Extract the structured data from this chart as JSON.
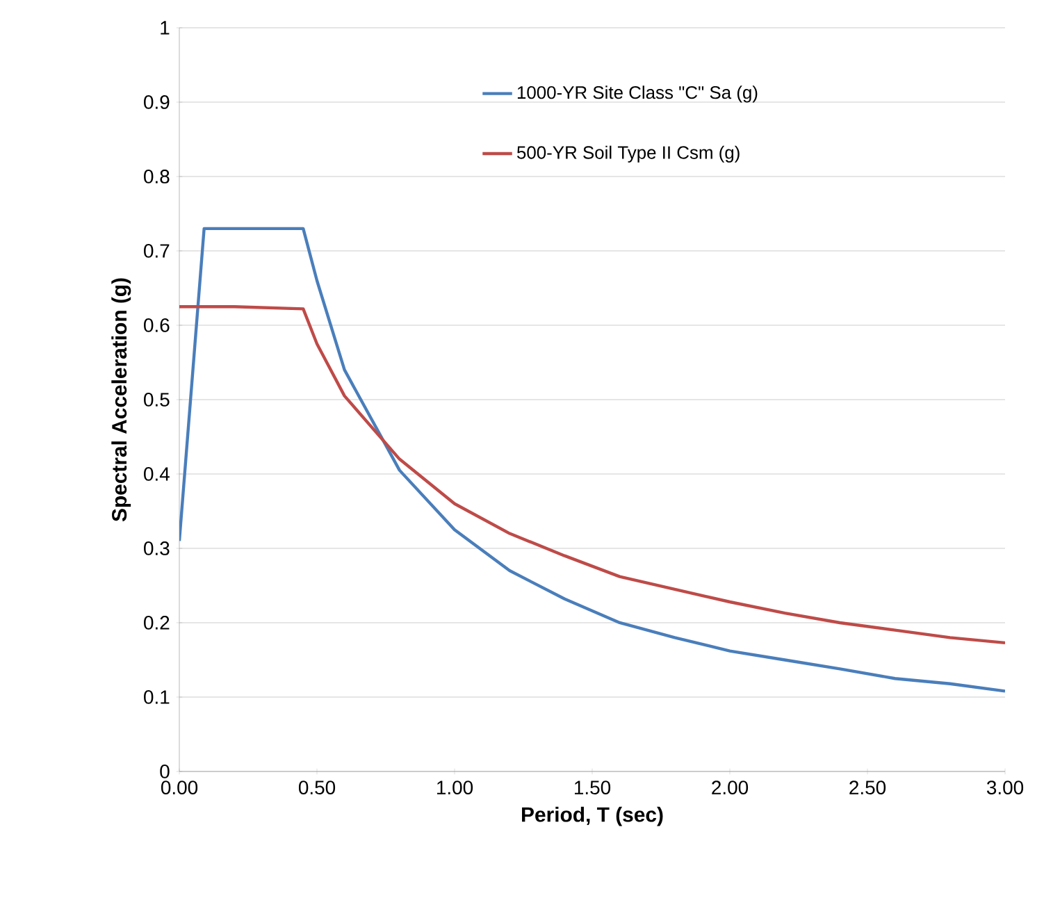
{
  "chart_data": {
    "type": "line",
    "xlabel": "Period, T (sec)",
    "ylabel": "Spectral Acceleration (g)",
    "xlim": [
      0,
      3
    ],
    "ylim": [
      0,
      1
    ],
    "xticks": [
      {
        "value": 0,
        "label": "0.00"
      },
      {
        "value": 0.5,
        "label": "0.50"
      },
      {
        "value": 1,
        "label": "1.00"
      },
      {
        "value": 1.5,
        "label": "1.50"
      },
      {
        "value": 2,
        "label": "2.00"
      },
      {
        "value": 2.5,
        "label": "2.50"
      },
      {
        "value": 3,
        "label": "3.00"
      }
    ],
    "yticks": [
      0,
      0.1,
      0.2,
      0.3,
      0.4,
      0.5,
      0.6,
      0.7,
      0.8,
      0.9,
      1
    ],
    "grid": "y",
    "legend": "top right",
    "marker": "none",
    "line_style": "solid",
    "series": [
      {
        "name": "1000-YR Site Class \"C\" Sa (g)",
        "color": "#4a7ebb",
        "x": [
          0,
          0.09,
          0.45,
          0.5,
          0.6,
          0.8,
          1.0,
          1.2,
          1.4,
          1.6,
          1.8,
          2.0,
          2.2,
          2.4,
          2.6,
          2.8,
          3.0
        ],
        "values": [
          0.31,
          0.73,
          0.73,
          0.66,
          0.54,
          0.405,
          0.325,
          0.27,
          0.232,
          0.2,
          0.18,
          0.162,
          0.15,
          0.138,
          0.125,
          0.118,
          0.108
        ]
      },
      {
        "name": "500-YR Soil Type II Csm (g)",
        "color": "#be4b48",
        "x": [
          0,
          0.2,
          0.45,
          0.5,
          0.6,
          0.8,
          1.0,
          1.2,
          1.4,
          1.6,
          1.8,
          2.0,
          2.2,
          2.4,
          2.6,
          2.8,
          3.0
        ],
        "values": [
          0.625,
          0.625,
          0.622,
          0.575,
          0.505,
          0.42,
          0.36,
          0.32,
          0.29,
          0.262,
          0.245,
          0.228,
          0.213,
          0.2,
          0.19,
          0.18,
          0.173
        ]
      }
    ]
  }
}
